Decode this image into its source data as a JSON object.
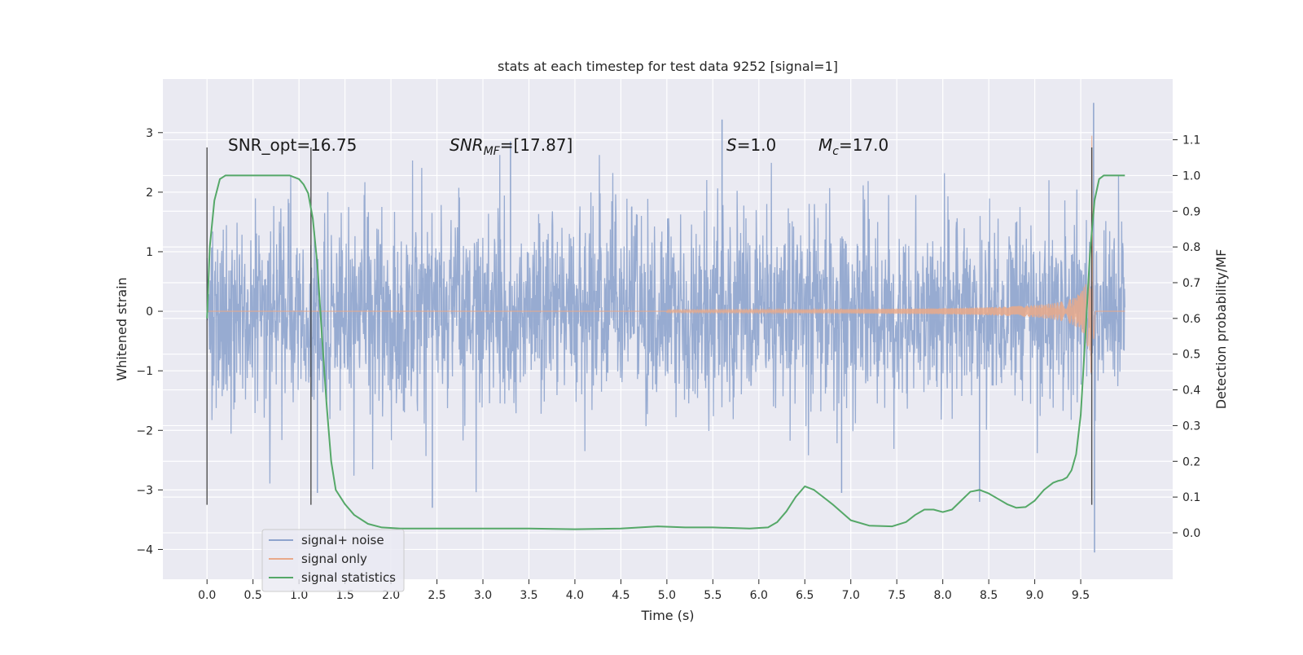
{
  "chart_data": {
    "type": "line",
    "title": "stats at each timestep for test data 9252 [signal=1]",
    "xlabel": "Time (s)",
    "ylabel_left": "Whitened strain",
    "ylabel_right": "Detection probability/MF",
    "xlim": [
      -0.48,
      10.5
    ],
    "ylim_left": [
      -4.5,
      3.9
    ],
    "ylim_right": [
      -0.13,
      1.27
    ],
    "x_ticks": [
      0.0,
      0.5,
      1.0,
      1.5,
      2.0,
      2.5,
      3.0,
      3.5,
      4.0,
      4.5,
      5.0,
      5.5,
      6.0,
      6.5,
      7.0,
      7.5,
      8.0,
      8.5,
      9.0,
      9.5
    ],
    "x_tick_labels": [
      "0.0",
      "0.5",
      "1.0",
      "1.5",
      "2.0",
      "2.5",
      "3.0",
      "3.5",
      "4.0",
      "4.5",
      "5.0",
      "5.5",
      "6.0",
      "6.5",
      "7.0",
      "7.5",
      "8.0",
      "8.5",
      "9.0",
      "9.5"
    ],
    "y_left_ticks": [
      -4,
      -3,
      -2,
      -1,
      0,
      1,
      2,
      3
    ],
    "y_left_tick_labels": [
      "−4",
      "−3",
      "−2",
      "−1",
      "0",
      "1",
      "2",
      "3"
    ],
    "y_right_ticks": [
      0.0,
      0.1,
      0.2,
      0.3,
      0.4,
      0.5,
      0.6,
      0.7,
      0.8,
      0.9,
      1.0,
      1.1
    ],
    "y_right_tick_labels": [
      "0.0",
      "0.1",
      "0.2",
      "0.3",
      "0.4",
      "0.5",
      "0.6",
      "0.7",
      "0.8",
      "0.9",
      "1.0",
      "1.1"
    ],
    "grid": true,
    "legend_position": "lower-left",
    "annotations": [
      {
        "text": "SNR_opt=16.75"
      },
      {
        "text": "SNR_MF=[17.87]"
      },
      {
        "text": "S=1.0"
      },
      {
        "text": "M_c=17.0"
      }
    ],
    "vertical_markers_s": [
      0.0,
      1.13,
      9.62
    ],
    "series": [
      {
        "name": "signal+ noise",
        "color": "#8ea4cd",
        "axis": "left",
        "description_envelope": {
          "t_start": 0.0,
          "t_end": 9.98,
          "typical_upper": 1.5,
          "typical_lower": -1.5,
          "extreme_max": 3.5,
          "extreme_min": -4.05
        }
      },
      {
        "name": "signal only",
        "color": "#dd8452",
        "axis": "left",
        "chirp": {
          "onset_s": 5.0,
          "merger_s": 9.62,
          "amplitude_at_9s": 0.3,
          "peak_amplitude": 3.1,
          "end_s": 9.98
        }
      },
      {
        "name": "signal statistics",
        "color": "#55a868",
        "axis": "right",
        "x": [
          0.0,
          0.03,
          0.08,
          0.14,
          0.2,
          0.3,
          0.5,
          0.7,
          0.9,
          1.0,
          1.05,
          1.1,
          1.15,
          1.2,
          1.25,
          1.3,
          1.35,
          1.4,
          1.5,
          1.6,
          1.75,
          1.9,
          2.1,
          2.5,
          3.0,
          3.5,
          4.0,
          4.5,
          4.9,
          5.2,
          5.5,
          5.9,
          6.1,
          6.2,
          6.3,
          6.4,
          6.5,
          6.6,
          6.8,
          7.0,
          7.2,
          7.45,
          7.6,
          7.7,
          7.8,
          7.9,
          8.0,
          8.1,
          8.2,
          8.3,
          8.4,
          8.5,
          8.6,
          8.7,
          8.8,
          8.9,
          9.0,
          9.1,
          9.2,
          9.25,
          9.3,
          9.35,
          9.4,
          9.45,
          9.5,
          9.55,
          9.6,
          9.65,
          9.7,
          9.75,
          9.8,
          9.9,
          9.98
        ],
        "y": [
          0.6,
          0.8,
          0.93,
          0.99,
          1.0,
          1.0,
          1.0,
          1.0,
          1.0,
          0.99,
          0.975,
          0.95,
          0.88,
          0.75,
          0.55,
          0.36,
          0.2,
          0.12,
          0.08,
          0.05,
          0.025,
          0.015,
          0.012,
          0.012,
          0.012,
          0.012,
          0.01,
          0.012,
          0.018,
          0.015,
          0.015,
          0.012,
          0.015,
          0.03,
          0.06,
          0.1,
          0.13,
          0.12,
          0.08,
          0.035,
          0.02,
          0.018,
          0.03,
          0.05,
          0.065,
          0.065,
          0.058,
          0.065,
          0.09,
          0.115,
          0.12,
          0.11,
          0.095,
          0.08,
          0.07,
          0.072,
          0.09,
          0.12,
          0.14,
          0.145,
          0.148,
          0.155,
          0.175,
          0.22,
          0.33,
          0.55,
          0.78,
          0.93,
          0.99,
          1.0,
          1.0,
          1.0,
          1.0
        ]
      }
    ]
  }
}
